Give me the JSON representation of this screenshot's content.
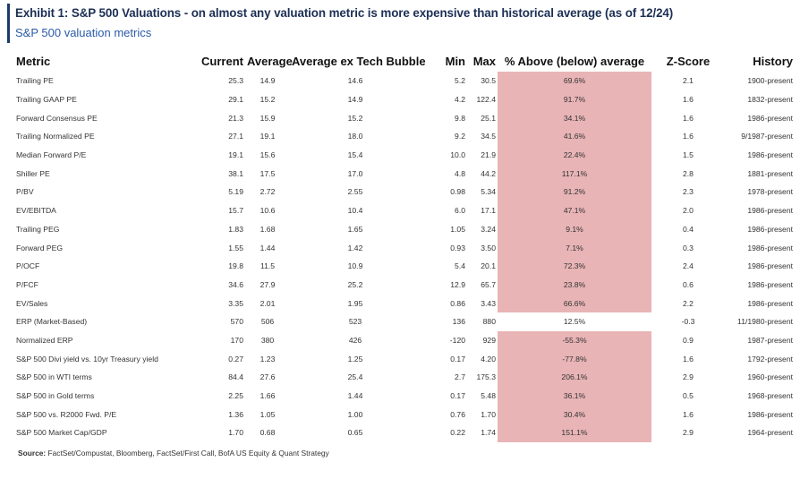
{
  "header": {
    "title": "Exhibit 1: S&P 500 Valuations - on almost any valuation metric is more expensive than historical average (as of 12/24)",
    "subtitle": "S&P 500 valuation metrics"
  },
  "table": {
    "columns": [
      "Metric",
      "Current",
      "Average",
      "Average ex Tech Bubble",
      "Min",
      "Max",
      "% Above (below) average",
      "Z-Score",
      "History"
    ],
    "rows": [
      {
        "metric": "Trailing PE",
        "current": "25.3",
        "average": "14.9",
        "avg_ex": "14.6",
        "min": "5.2",
        "max": "30.5",
        "pct": "69.6%",
        "z": "2.1",
        "history": "1900-present",
        "highlight": true
      },
      {
        "metric": "Trailing GAAP PE",
        "current": "29.1",
        "average": "15.2",
        "avg_ex": "14.9",
        "min": "4.2",
        "max": "122.4",
        "pct": "91.7%",
        "z": "1.6",
        "history": "1832-present",
        "highlight": true
      },
      {
        "metric": "Forward Consensus PE",
        "current": "21.3",
        "average": "15.9",
        "avg_ex": "15.2",
        "min": "9.8",
        "max": "25.1",
        "pct": "34.1%",
        "z": "1.6",
        "history": "1986-present",
        "highlight": true
      },
      {
        "metric": "Trailing Normalized PE",
        "current": "27.1",
        "average": "19.1",
        "avg_ex": "18.0",
        "min": "9.2",
        "max": "34.5",
        "pct": "41.6%",
        "z": "1.6",
        "history": "9/1987-present",
        "highlight": true
      },
      {
        "metric": "Median Forward P/E",
        "current": "19.1",
        "average": "15.6",
        "avg_ex": "15.4",
        "min": "10.0",
        "max": "21.9",
        "pct": "22.4%",
        "z": "1.5",
        "history": "1986-present",
        "highlight": true
      },
      {
        "metric": "Shiller PE",
        "current": "38.1",
        "average": "17.5",
        "avg_ex": "17.0",
        "min": "4.8",
        "max": "44.2",
        "pct": "117.1%",
        "z": "2.8",
        "history": "1881-present",
        "highlight": true
      },
      {
        "metric": "P/BV",
        "current": "5.19",
        "average": "2.72",
        "avg_ex": "2.55",
        "min": "0.98",
        "max": "5.34",
        "pct": "91.2%",
        "z": "2.3",
        "history": "1978-present",
        "highlight": true
      },
      {
        "metric": "EV/EBITDA",
        "current": "15.7",
        "average": "10.6",
        "avg_ex": "10.4",
        "min": "6.0",
        "max": "17.1",
        "pct": "47.1%",
        "z": "2.0",
        "history": "1986-present",
        "highlight": true
      },
      {
        "metric": "Trailing PEG",
        "current": "1.83",
        "average": "1.68",
        "avg_ex": "1.65",
        "min": "1.05",
        "max": "3.24",
        "pct": "9.1%",
        "z": "0.4",
        "history": "1986-present",
        "highlight": true
      },
      {
        "metric": "Forward PEG",
        "current": "1.55",
        "average": "1.44",
        "avg_ex": "1.42",
        "min": "0.93",
        "max": "3.50",
        "pct": "7.1%",
        "z": "0.3",
        "history": "1986-present",
        "highlight": true
      },
      {
        "metric": "P/OCF",
        "current": "19.8",
        "average": "11.5",
        "avg_ex": "10.9",
        "min": "5.4",
        "max": "20.1",
        "pct": "72.3%",
        "z": "2.4",
        "history": "1986-present",
        "highlight": true
      },
      {
        "metric": "P/FCF",
        "current": "34.6",
        "average": "27.9",
        "avg_ex": "25.2",
        "min": "12.9",
        "max": "65.7",
        "pct": "23.8%",
        "z": "0.6",
        "history": "1986-present",
        "highlight": true
      },
      {
        "metric": "EV/Sales",
        "current": "3.35",
        "average": "2.01",
        "avg_ex": "1.95",
        "min": "0.86",
        "max": "3.43",
        "pct": "66.6%",
        "z": "2.2",
        "history": "1986-present",
        "highlight": true
      },
      {
        "metric": "ERP (Market-Based)",
        "current": "570",
        "average": "506",
        "avg_ex": "523",
        "min": "136",
        "max": "880",
        "pct": "12.5%",
        "z": "-0.3",
        "history": "11/1980-present",
        "highlight": false
      },
      {
        "metric": "Normalized ERP",
        "current": "170",
        "average": "380",
        "avg_ex": "426",
        "min": "-120",
        "max": "929",
        "pct": "-55.3%",
        "z": "0.9",
        "history": "1987-present",
        "highlight": true
      },
      {
        "metric": "S&P 500 Divi yield vs. 10yr Treasury yield",
        "current": "0.27",
        "average": "1.23",
        "avg_ex": "1.25",
        "min": "0.17",
        "max": "4.20",
        "pct": "-77.8%",
        "z": "1.6",
        "history": "1792-present",
        "highlight": true
      },
      {
        "metric": "S&P 500 in WTI terms",
        "current": "84.4",
        "average": "27.6",
        "avg_ex": "25.4",
        "min": "2.7",
        "max": "175.3",
        "pct": "206.1%",
        "z": "2.9",
        "history": "1960-present",
        "highlight": true
      },
      {
        "metric": "S&P 500 in Gold terms",
        "current": "2.25",
        "average": "1.66",
        "avg_ex": "1.44",
        "min": "0.17",
        "max": "5.48",
        "pct": "36.1%",
        "z": "0.5",
        "history": "1968-present",
        "highlight": true
      },
      {
        "metric": "S&P 500 vs. R2000 Fwd. P/E",
        "current": "1.36",
        "average": "1.05",
        "avg_ex": "1.00",
        "min": "0.76",
        "max": "1.70",
        "pct": "30.4%",
        "z": "1.6",
        "history": "1986-present",
        "highlight": true
      },
      {
        "metric": "S&P 500 Market Cap/GDP",
        "current": "1.70",
        "average": "0.68",
        "avg_ex": "0.65",
        "min": "0.22",
        "max": "1.74",
        "pct": "151.1%",
        "z": "2.9",
        "history": "1964-present",
        "highlight": true
      }
    ]
  },
  "footer": {
    "source_label": "Source:",
    "source_text": "FactSet/Compustat, Bloomberg, FactSet/First Call, BofA US Equity & Quant Strategy"
  },
  "colors": {
    "highlight": "#e8b4b6",
    "title": "#1c2f55",
    "subtitle": "#2b5aa7"
  }
}
